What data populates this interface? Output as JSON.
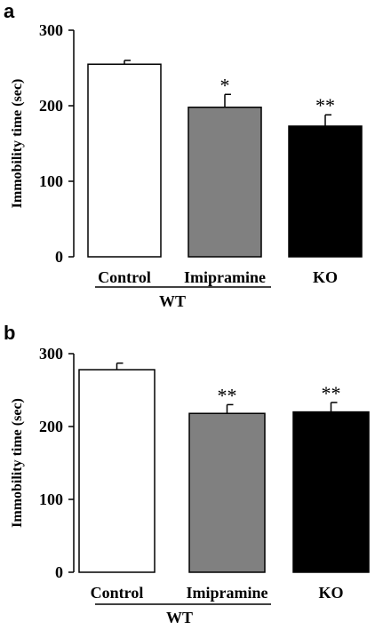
{
  "chart_data": [
    {
      "panel": "a",
      "type": "bar",
      "ylabel": "Immobility time (sec)",
      "ylim": [
        0,
        300
      ],
      "yticks": [
        0,
        100,
        200,
        300
      ],
      "categories": [
        "Control",
        "Imipramine",
        "KO"
      ],
      "group_label": "WT",
      "values": [
        255,
        198,
        173
      ],
      "errors": [
        5,
        17,
        15
      ],
      "significance": [
        "",
        "*",
        "**"
      ],
      "colors": [
        "#ffffff",
        "#808080",
        "#000000"
      ]
    },
    {
      "panel": "b",
      "type": "bar",
      "ylabel": "Immobility time (sec)",
      "ylim": [
        0,
        300
      ],
      "yticks": [
        0,
        100,
        200,
        300
      ],
      "categories": [
        "Control",
        "Imipramine",
        "KO"
      ],
      "group_label": "WT",
      "values": [
        278,
        218,
        220
      ],
      "errors": [
        9,
        12,
        13
      ],
      "significance": [
        "",
        "**",
        "**"
      ],
      "colors": [
        "#ffffff",
        "#808080",
        "#000000"
      ]
    }
  ]
}
